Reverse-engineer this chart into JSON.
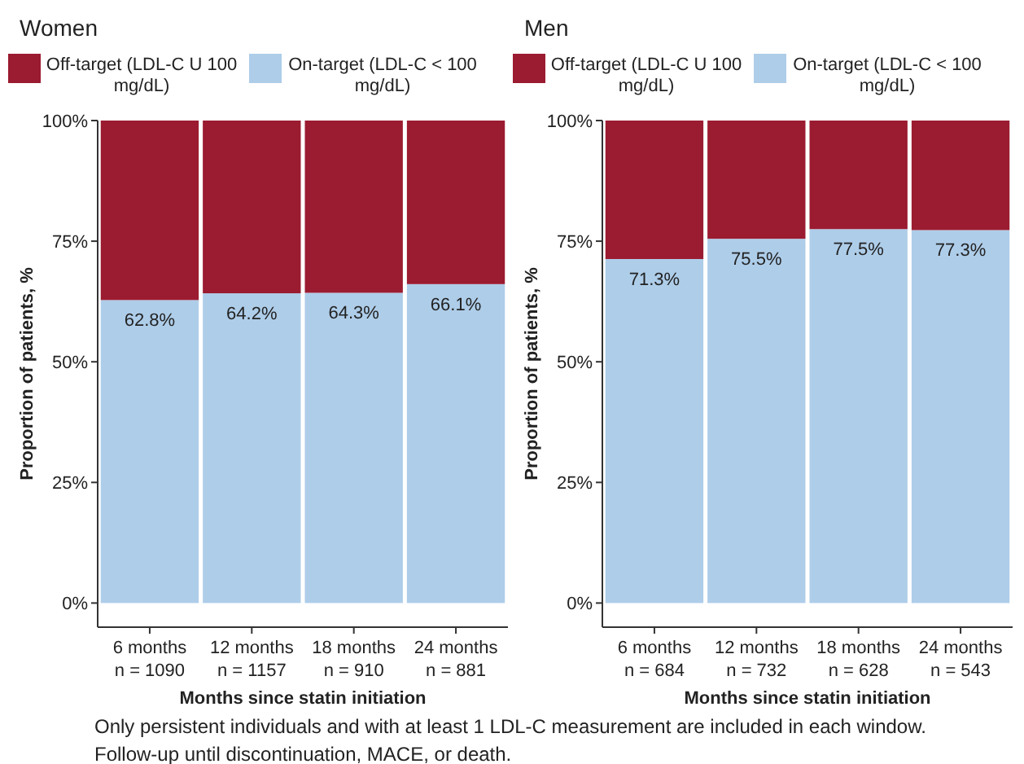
{
  "chart_data": [
    {
      "type": "bar",
      "stacked": true,
      "title": "Women",
      "xlabel": "Months since statin initiation",
      "ylabel": "Proportion of patients, %",
      "categories": [
        "6 months\nn = 1090",
        "12 months\nn = 1157",
        "18 months\nn = 910",
        "24 months\nn = 881"
      ],
      "series": [
        {
          "name": "On-target (LDL-C < 100 mg/dL)",
          "color": "#aecde9",
          "values": [
            62.8,
            64.2,
            64.3,
            66.1
          ],
          "value_labels": [
            "62.8%",
            "64.2%",
            "64.3%",
            "66.1%"
          ]
        },
        {
          "name": "Off-target (LDL-C U 100 mg/dL)",
          "color": "#9b1b30",
          "values": [
            37.2,
            35.8,
            35.7,
            33.9
          ]
        }
      ],
      "ylim": [
        -5,
        100
      ],
      "yticks": [
        {
          "value": 0,
          "label": "0%"
        },
        {
          "value": 25,
          "label": "25%"
        },
        {
          "value": 50,
          "label": "50%"
        },
        {
          "value": 75,
          "label": "75%"
        },
        {
          "value": 100,
          "label": "100%"
        }
      ],
      "grid": false,
      "legend": "top",
      "annotations": [
        "Only persistent individuals and with at least 1 LDL-C measurement are included in each window.",
        "Follow-up until discontinuation, MACE, or death."
      ]
    },
    {
      "type": "bar",
      "stacked": true,
      "title": "Men",
      "xlabel": "Months since statin initiation",
      "ylabel": "Proportion of patients, %",
      "categories": [
        "6 months\nn = 684",
        "12 months\nn = 732",
        "18 months\nn = 628",
        "24 months\nn = 543"
      ],
      "series": [
        {
          "name": "On-target (LDL-C < 100 mg/dL)",
          "color": "#aecde9",
          "values": [
            71.3,
            75.5,
            77.5,
            77.3
          ],
          "value_labels": [
            "71.3%",
            "75.5%",
            "77.5%",
            "77.3%"
          ]
        },
        {
          "name": "Off-target (LDL-C U 100 mg/dL)",
          "color": "#9b1b30",
          "values": [
            28.7,
            24.5,
            22.5,
            22.7
          ]
        }
      ],
      "ylim": [
        -5,
        100
      ],
      "yticks": [
        {
          "value": 0,
          "label": "0%"
        },
        {
          "value": 25,
          "label": "25%"
        },
        {
          "value": 50,
          "label": "50%"
        },
        {
          "value": 75,
          "label": "75%"
        },
        {
          "value": 100,
          "label": "100%"
        }
      ],
      "grid": false,
      "legend": "top"
    }
  ]
}
